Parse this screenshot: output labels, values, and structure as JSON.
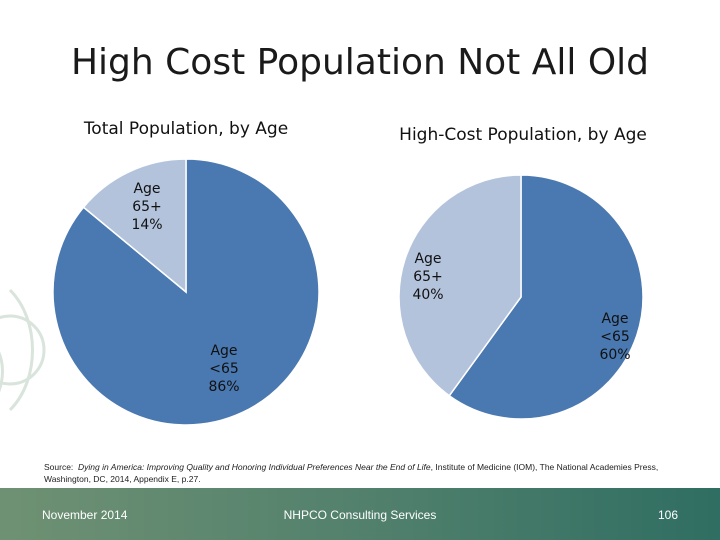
{
  "slide": {
    "title": "High Cost Population Not All Old",
    "source_label": "Source:",
    "source_title": "Dying in America: Improving Quality and Honoring Individual Preferences Near the End of Life",
    "source_rest": ", Institute of Medicine (IOM), The National Academies Press, Washington, DC, 2014, Appendix E, p.27."
  },
  "footer": {
    "date": "November 2014",
    "organization": "NHPCO Consulting Services",
    "page_number": "106"
  },
  "chart_data": [
    {
      "type": "pie",
      "title": "Total Population, by Age",
      "slices": [
        {
          "name": "Age <65",
          "value": 86,
          "label_lines": [
            "Age",
            "<65",
            "86%"
          ],
          "color": "#4a78b0"
        },
        {
          "name": "Age 65+",
          "value": 14,
          "label_lines": [
            "Age",
            "65+",
            "14%"
          ],
          "color": "#b4c3dc"
        }
      ]
    },
    {
      "type": "pie",
      "title": "High-Cost Population, by Age",
      "slices": [
        {
          "name": "Age <65",
          "value": 60,
          "label_lines": [
            "Age",
            "<65",
            "60%"
          ],
          "color": "#4a78b0"
        },
        {
          "name": "Age 65+",
          "value": 40,
          "label_lines": [
            "Age",
            "65+",
            "40%"
          ],
          "color": "#b4c3dc"
        }
      ]
    }
  ]
}
